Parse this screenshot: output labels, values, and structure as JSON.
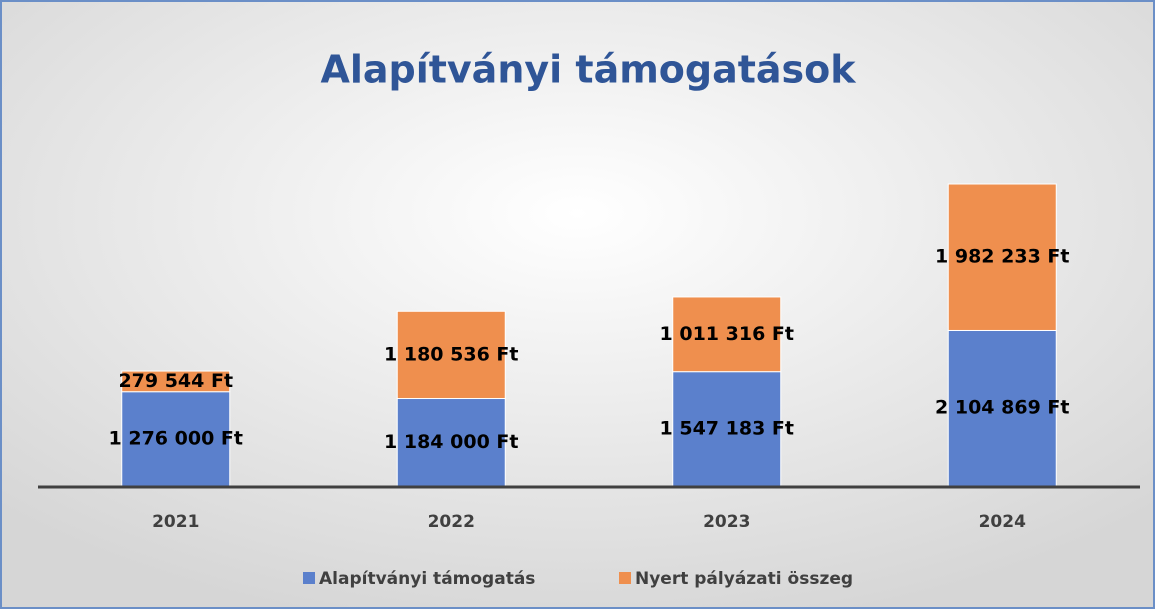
{
  "chart_data": {
    "type": "bar",
    "stacked": true,
    "title": "Alapítványi támogatások",
    "categories": [
      "2021",
      "2022",
      "2023",
      "2024"
    ],
    "series": [
      {
        "name": "Alapítványi támogatás",
        "color": "#5b80cc",
        "values": [
          1276000,
          1184000,
          1547183,
          2104869
        ],
        "value_labels": [
          "1 276 000 Ft",
          "1 184 000 Ft",
          "1 547 183 Ft",
          "2 104 869 Ft"
        ]
      },
      {
        "name": "Nyert pályázati összeg",
        "color": "#ef8f4e",
        "values": [
          279544,
          1180536,
          1011316,
          1982233
        ],
        "value_labels": [
          "279 544 Ft",
          "1 180 536 Ft",
          "1 011 316 Ft",
          "1 982 233 Ft"
        ]
      }
    ]
  }
}
